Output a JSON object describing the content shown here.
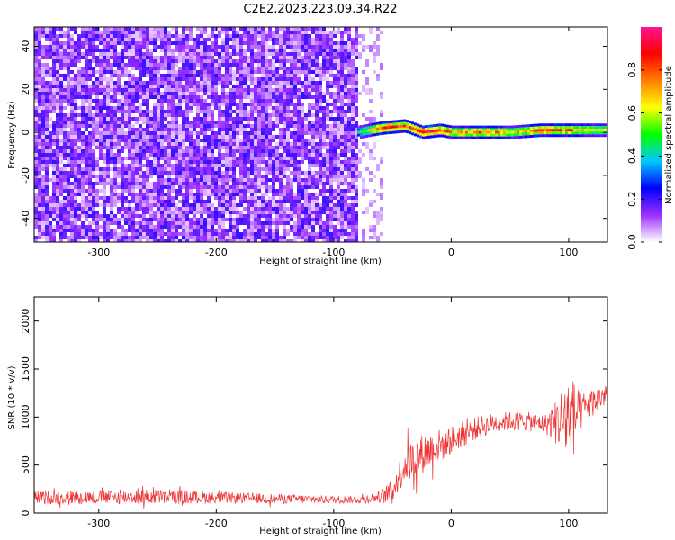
{
  "title": "C2E2.2023.223.09.34.R22",
  "chart_data": [
    {
      "type": "heatmap",
      "title": "C2E2.2023.223.09.34.R22",
      "xlabel": "Height of straight line (km)",
      "ylabel": "Frequency (Hz)",
      "xlim": [
        -355,
        133
      ],
      "ylim": [
        -51,
        49
      ],
      "x_ticks": [
        -300,
        -200,
        -100,
        0,
        100
      ],
      "y_ticks": [
        -40,
        -20,
        0,
        20,
        40
      ],
      "description_of_field": "Broadband noise (violet, normalized ~0.1-0.35) for heights below about -80 km; a narrow signal ridge centred near 0 Hz from about -80 km to 133 km with high amplitudes (0.8-1.0) around -60 to 100 km",
      "ridge": {
        "x": [
          -80,
          -60,
          -40,
          -25,
          -10,
          0,
          25,
          50,
          75,
          100,
          133
        ],
        "center_hz": [
          0,
          2,
          3,
          0,
          1,
          0,
          0,
          0,
          1,
          1,
          1
        ],
        "amplitude": [
          0.45,
          0.9,
          0.85,
          0.95,
          0.9,
          0.7,
          0.85,
          0.65,
          0.9,
          0.8,
          0.6
        ]
      },
      "colorbar": {
        "label": "Normalized spectral amplitude",
        "range": [
          0.0,
          1.0
        ],
        "ticks": [
          "0.0",
          "0.2",
          "0.4",
          "0.6",
          "0.8"
        ],
        "tick_values": [
          0.0,
          0.2,
          0.4,
          0.6,
          0.8
        ],
        "colors": [
          "#ffffff",
          "#9b30ff",
          "#0000ff",
          "#00c8ff",
          "#00ff00",
          "#ffff00",
          "#ff8000",
          "#ff0000",
          "#ff1493"
        ]
      }
    },
    {
      "type": "line",
      "xlabel": "Height of straight line (km)",
      "ylabel": "SNR (10 * v/v)",
      "xlim": [
        -355,
        133
      ],
      "ylim": [
        0,
        2250
      ],
      "x_ticks": [
        -300,
        -200,
        -100,
        0,
        100
      ],
      "y_ticks": [
        0,
        500,
        1000,
        1500,
        2000
      ],
      "color": "#ee3333",
      "series": [
        {
          "x": [
            -355,
            -300,
            -250,
            -200,
            -150,
            -100,
            -80,
            -60,
            -50,
            -40,
            -30,
            -20,
            -10,
            0,
            20,
            40,
            60,
            80,
            90,
            100,
            110,
            120,
            133
          ],
          "values": [
            160,
            165,
            170,
            160,
            150,
            140,
            140,
            170,
            240,
            500,
            580,
            650,
            700,
            760,
            880,
            950,
            960,
            930,
            950,
            1000,
            1050,
            1150,
            1250
          ],
          "noise_amplitude": [
            70,
            70,
            80,
            60,
            50,
            40,
            40,
            60,
            120,
            200,
            220,
            200,
            180,
            150,
            120,
            100,
            100,
            100,
            250,
            500,
            200,
            150,
            120
          ]
        }
      ]
    }
  ]
}
